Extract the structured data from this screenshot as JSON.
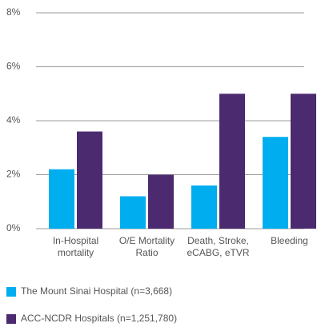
{
  "chart_data": {
    "type": "bar",
    "categories": [
      "In-Hospital\nmortality",
      "O/E Mortality\nRatio",
      "Death, Stroke,\neCABG, eTVR",
      "Bleeding"
    ],
    "series": [
      {
        "name": "The Mount Sinai Hospital (n=3,668)",
        "color": "#00aeef",
        "values": [
          2.2,
          1.2,
          1.6,
          3.4
        ]
      },
      {
        "name": "ACC-NCDR Hospitals (n=1,251,780)",
        "color": "#4b2a6f",
        "values": [
          3.6,
          2.0,
          5.0,
          5.0
        ]
      }
    ],
    "ylim": [
      0,
      8
    ],
    "yticks": [
      {
        "value": 0,
        "label": "0%"
      },
      {
        "value": 2,
        "label": "2%"
      },
      {
        "value": 4,
        "label": "4%"
      },
      {
        "value": 6,
        "label": "6%"
      },
      {
        "value": 8,
        "label": "8%"
      }
    ],
    "grid": true
  }
}
